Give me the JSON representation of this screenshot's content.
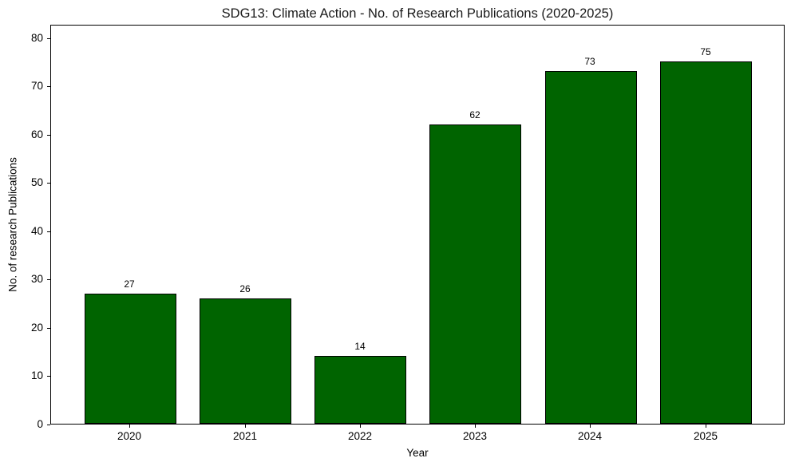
{
  "chart_data": {
    "type": "bar",
    "title": "SDG13: Climate Action - No. of Research Publications (2020-2025)",
    "xlabel": "Year",
    "ylabel": "No. of research Publications",
    "categories": [
      "2020",
      "2021",
      "2022",
      "2023",
      "2024",
      "2025"
    ],
    "values": [
      27,
      26,
      14,
      62,
      73,
      75
    ],
    "bar_labels": [
      "27",
      "26",
      "14",
      "62",
      "73",
      "75"
    ],
    "yticks": [
      0,
      10,
      20,
      30,
      40,
      50,
      60,
      70,
      80
    ],
    "ylim": [
      0,
      82.8
    ],
    "xlim": [
      -0.69,
      5.69
    ],
    "bar_width_units": 0.8,
    "bar_color": "#006400",
    "bar_edge_color": "#000000",
    "background_color": "#ffffff",
    "grid": false,
    "legend": "none"
  }
}
